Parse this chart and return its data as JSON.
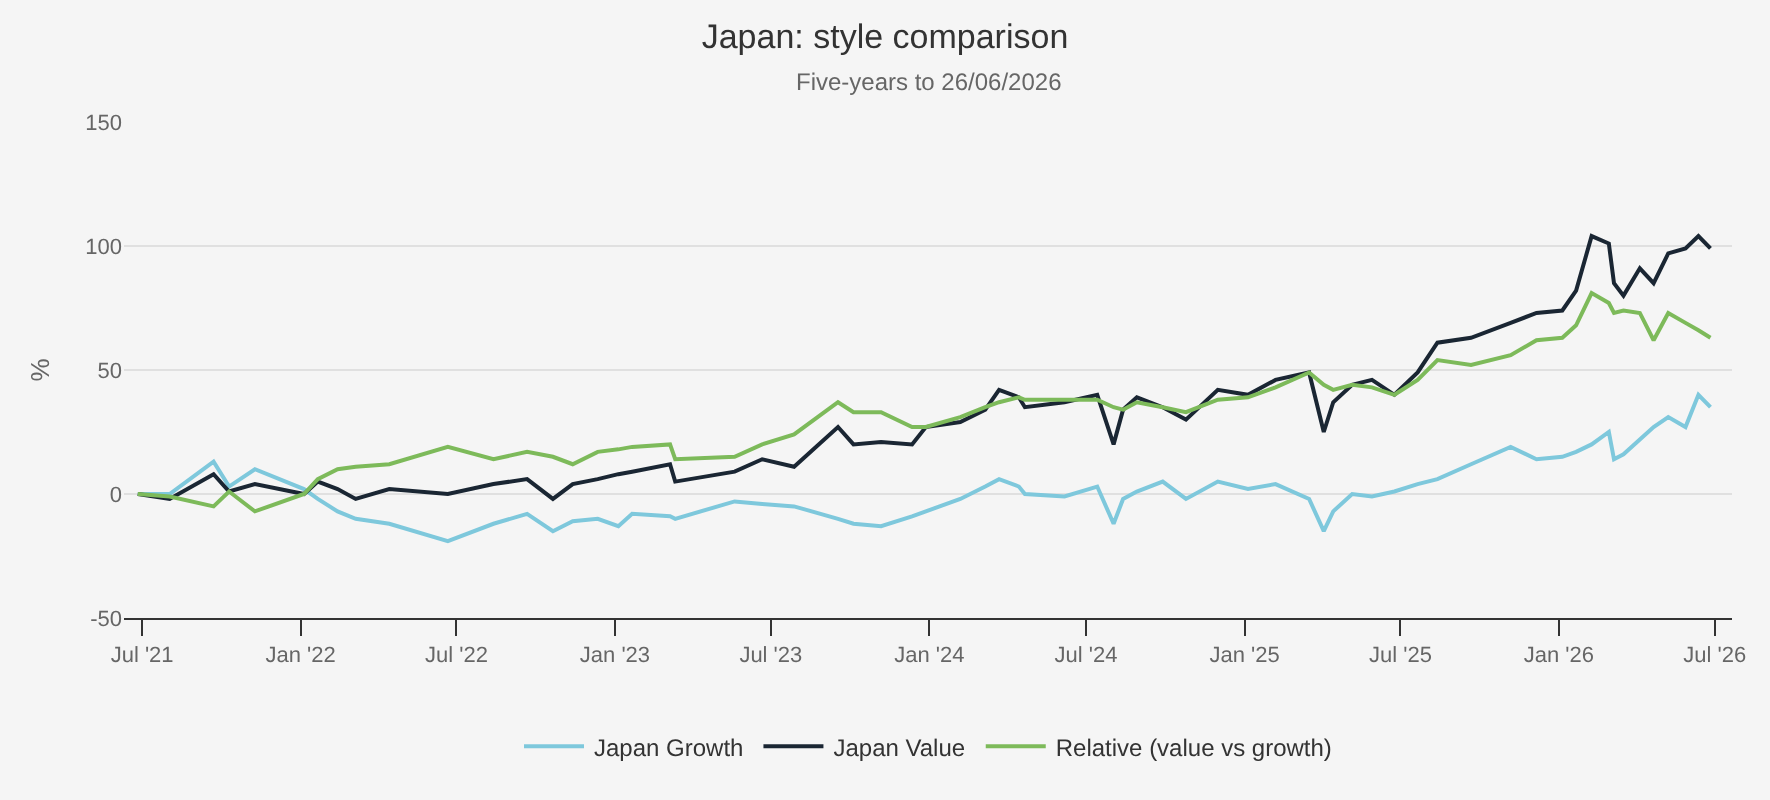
{
  "chart_data": {
    "type": "line",
    "title": "Japan: style comparison",
    "subtitle": "Five-years to 26/06/2026",
    "ylabel": "%",
    "x": [
      "2021-06-26",
      "2021-08-02",
      "2021-09-22",
      "2021-10-10",
      "2021-11-09",
      "2022-01-05",
      "2022-01-21",
      "2022-02-13",
      "2022-03-06",
      "2022-04-14",
      "2022-06-21",
      "2022-08-13",
      "2022-09-21",
      "2022-10-21",
      "2022-11-13",
      "2022-12-12",
      "2023-01-05",
      "2023-01-21",
      "2023-03-06",
      "2023-03-12",
      "2023-05-20",
      "2023-06-21",
      "2023-07-28",
      "2023-09-17",
      "2023-10-05",
      "2023-11-06",
      "2023-12-12",
      "2023-12-28",
      "2024-02-06",
      "2024-03-06",
      "2024-03-22",
      "2024-04-14",
      "2024-04-21",
      "2024-06-06",
      "2024-07-14",
      "2024-08-02",
      "2024-08-13",
      "2024-08-29",
      "2024-09-28",
      "2024-10-25",
      "2024-12-01",
      "2025-01-05",
      "2025-02-06",
      "2025-03-17",
      "2025-04-03",
      "2025-04-14",
      "2025-05-06",
      "2025-05-29",
      "2025-06-24",
      "2025-07-21",
      "2025-08-13",
      "2025-09-21",
      "2025-11-06",
      "2025-12-06",
      "2026-01-05",
      "2026-01-21",
      "2026-02-08",
      "2026-02-28",
      "2026-03-06",
      "2026-03-17",
      "2026-04-05",
      "2026-04-21",
      "2026-05-08",
      "2026-05-28",
      "2026-06-12",
      "2026-06-26"
    ],
    "series": [
      {
        "name": "Japan Growth",
        "color": "#7ec8dc",
        "values": [
          0,
          0,
          13,
          3,
          10,
          2,
          -2,
          -7,
          -10,
          -12,
          -19,
          -12,
          -8,
          -15,
          -11,
          -10,
          -13,
          -8,
          -9,
          -10,
          -3,
          -4,
          -5,
          -10,
          -12,
          -13,
          -9,
          -7,
          -2,
          3,
          6,
          3,
          0,
          -1,
          3,
          -12,
          -2,
          1,
          5,
          -2,
          5,
          2,
          4,
          -2,
          -15,
          -7,
          0,
          -1,
          1,
          4,
          6,
          12,
          19,
          14,
          15,
          17,
          20,
          25,
          14,
          16,
          22,
          27,
          31,
          27,
          40,
          35
        ]
      },
      {
        "name": "Japan Value",
        "color": "#1a2633",
        "values": [
          0,
          -2,
          8,
          1,
          4,
          0,
          5,
          2,
          -2,
          2,
          0,
          4,
          6,
          -2,
          4,
          6,
          8,
          9,
          12,
          5,
          9,
          14,
          11,
          27,
          20,
          21,
          20,
          27,
          29,
          34,
          42,
          39,
          35,
          37,
          40,
          20,
          34,
          39,
          35,
          30,
          42,
          40,
          46,
          49,
          25,
          37,
          44,
          46,
          40,
          49,
          61,
          63,
          69,
          73,
          74,
          82,
          104,
          101,
          85,
          80,
          91,
          85,
          97,
          99,
          104,
          99
        ]
      },
      {
        "name": "Relative (value vs growth)",
        "color": "#7dba5a",
        "values": [
          0,
          -1,
          -5,
          1,
          -7,
          0,
          6,
          10,
          11,
          12,
          19,
          14,
          17,
          15,
          12,
          17,
          18,
          19,
          20,
          14,
          15,
          20,
          24,
          37,
          33,
          33,
          27,
          27,
          31,
          35,
          37,
          39,
          38,
          38,
          38,
          35,
          34,
          37,
          35,
          33,
          38,
          39,
          43,
          49,
          44,
          42,
          44,
          43,
          40,
          46,
          54,
          52,
          56,
          62,
          63,
          68,
          81,
          77,
          73,
          74,
          73,
          62,
          73,
          69,
          66,
          63
        ]
      }
    ],
    "xlim": [
      "2021-06-10",
      "2026-07-21"
    ],
    "xticks": [
      {
        "value": "2021-07-01",
        "label": "Jul '21"
      },
      {
        "value": "2022-01-01",
        "label": "Jan '22"
      },
      {
        "value": "2022-07-01",
        "label": "Jul '22"
      },
      {
        "value": "2023-01-01",
        "label": "Jan '23"
      },
      {
        "value": "2023-07-01",
        "label": "Jul '23"
      },
      {
        "value": "2024-01-01",
        "label": "Jan '24"
      },
      {
        "value": "2024-07-01",
        "label": "Jul '24"
      },
      {
        "value": "2025-01-01",
        "label": "Jan '25"
      },
      {
        "value": "2025-07-01",
        "label": "Jul '25"
      },
      {
        "value": "2026-01-01",
        "label": "Jan '26"
      },
      {
        "value": "2026-07-01",
        "label": "Jul '26"
      }
    ],
    "ylim": [
      -50,
      150
    ],
    "yticks": [
      -50,
      0,
      50,
      100,
      150
    ],
    "grid": "y",
    "legend": "bottom",
    "marker": "none",
    "line_style": "solid"
  }
}
